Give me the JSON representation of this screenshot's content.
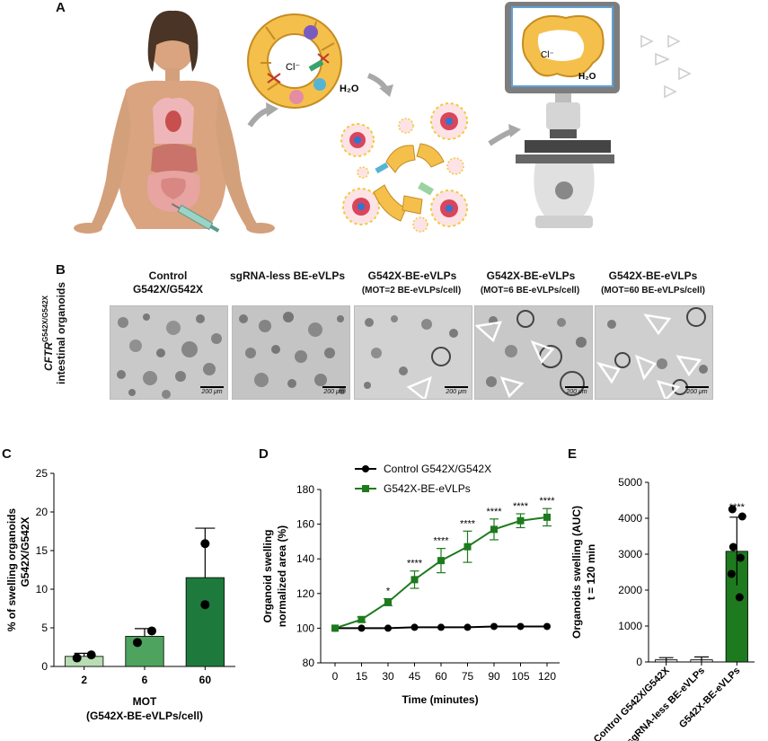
{
  "panels": {
    "a": "A",
    "b": "B",
    "c": "C",
    "d": "D",
    "e": "E"
  },
  "panel_a": {
    "cl_label": "Cl⁻",
    "h2o_label": "H₂O",
    "scope_cl_label": "Cl⁻",
    "scope_h2o_label": "H₂O"
  },
  "panel_b": {
    "row_label_gene": "CFTR",
    "row_label_sup": "G542X/G542X",
    "row_label_line2": "intestinal organoids",
    "scale_text": "200 μm",
    "columns": [
      {
        "title": "Control",
        "title2": "G542X/G542X",
        "subtitle": ""
      },
      {
        "title": "sgRNA-less BE-eVLPs",
        "title2": "",
        "subtitle": ""
      },
      {
        "title": "G542X-BE-eVLPs",
        "title2": "",
        "subtitle": "(MOT=2 BE-eVLPs/cell)"
      },
      {
        "title": "G542X-BE-eVLPs",
        "title2": "",
        "subtitle": "(MOT=6 BE-eVLPs/cell)"
      },
      {
        "title": "G542X-BE-eVLPs",
        "title2": "",
        "subtitle": "(MOT=60 BE-eVLPs/cell)"
      }
    ]
  },
  "chart_data": [
    {
      "panel": "C",
      "type": "bar",
      "categories": [
        "2",
        "6",
        "60"
      ],
      "values": [
        1.3,
        3.9,
        11.5
      ],
      "errors": [
        0.4,
        1.0,
        6.4
      ],
      "points": [
        [
          1.1,
          1.5
        ],
        [
          3.1,
          4.6
        ],
        [
          8.0,
          15.9
        ]
      ],
      "colors": [
        "#b8ddb3",
        "#4ea35e",
        "#1e7a3c"
      ],
      "ylabel": "% of swelling organoids",
      "ylabel2": "G542X/G542X",
      "xlabel": "MOT",
      "xlabel2": "(G542X-BE-eVLPs/cell)",
      "ylim": [
        0,
        25
      ],
      "yticks": [
        0,
        5,
        10,
        15,
        20,
        25
      ]
    },
    {
      "panel": "D",
      "type": "line",
      "x": [
        0,
        15,
        30,
        45,
        60,
        75,
        90,
        105,
        120
      ],
      "series": [
        {
          "name": "Control G542X/G542X",
          "values": [
            100,
            100,
            100,
            100.5,
            100.5,
            100.5,
            101,
            101,
            101
          ],
          "errors": [
            0.5,
            0.5,
            0.5,
            0.5,
            0.5,
            0.5,
            0.5,
            0.5,
            0.5
          ],
          "color": "#000000"
        },
        {
          "name": "G542X-BE-eVLPs",
          "values": [
            100,
            105,
            115,
            128,
            139,
            147,
            157,
            162,
            164
          ],
          "errors": [
            0.5,
            1.5,
            2,
            5,
            7,
            9,
            6,
            4,
            5
          ],
          "color": "#1e7a1e"
        }
      ],
      "significance": [
        "",
        "",
        "*",
        "****",
        "****",
        "****",
        "****",
        "****",
        "****"
      ],
      "ylabel": "Organoid swelling",
      "ylabel2": "normalized area (%)",
      "xlabel": "Time (minutes)",
      "ylim": [
        80,
        180
      ],
      "yticks": [
        80,
        100,
        120,
        140,
        160,
        180
      ]
    },
    {
      "panel": "E",
      "type": "bar",
      "categories": [
        "Control G542X/G542X",
        "sgRNA-less BE-eVLPs",
        "G542X-BE-eVLPs"
      ],
      "values": [
        60,
        60,
        3080
      ],
      "errors": [
        60,
        80,
        950
      ],
      "points": [
        [],
        [],
        [
          4250,
          4050,
          3200,
          2900,
          2450,
          1800
        ]
      ],
      "colors": [
        "#e0e0e0",
        "#e0e0e0",
        "#1e7a1e"
      ],
      "significance": [
        "",
        "",
        "****"
      ],
      "ylabel": "Organoids swelling  (AUC)",
      "ylabel2": "t = 120 min",
      "ylim": [
        0,
        5000
      ],
      "yticks": [
        0,
        1000,
        2000,
        3000,
        4000,
        5000
      ]
    }
  ]
}
